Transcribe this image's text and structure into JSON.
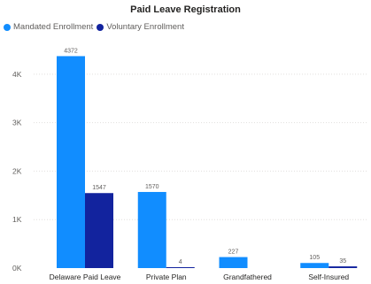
{
  "chart_data": {
    "type": "bar",
    "title": "Paid Leave Registration",
    "categories": [
      "Delaware Paid Leave",
      "Private Plan",
      "Grandfathered",
      "Self-Insured"
    ],
    "series": [
      {
        "name": "Mandated Enrollment",
        "color": "#118dff",
        "values": [
          4372,
          1570,
          227,
          105
        ],
        "labels": [
          "4372",
          "1570",
          "227",
          "105"
        ]
      },
      {
        "name": "Voluntary Enrollment",
        "color": "#12239e",
        "values": [
          1547,
          4,
          null,
          35
        ],
        "labels": [
          "1547",
          "4",
          "",
          "35"
        ]
      }
    ],
    "yticks": [
      0,
      1000,
      2000,
      3000,
      4000
    ],
    "ytick_labels": [
      "0K",
      "1K",
      "2K",
      "3K",
      "4K"
    ],
    "ylim": [
      0,
      4800
    ],
    "xlabel": "",
    "ylabel": "",
    "grid": true,
    "legend_position": "top-left"
  }
}
